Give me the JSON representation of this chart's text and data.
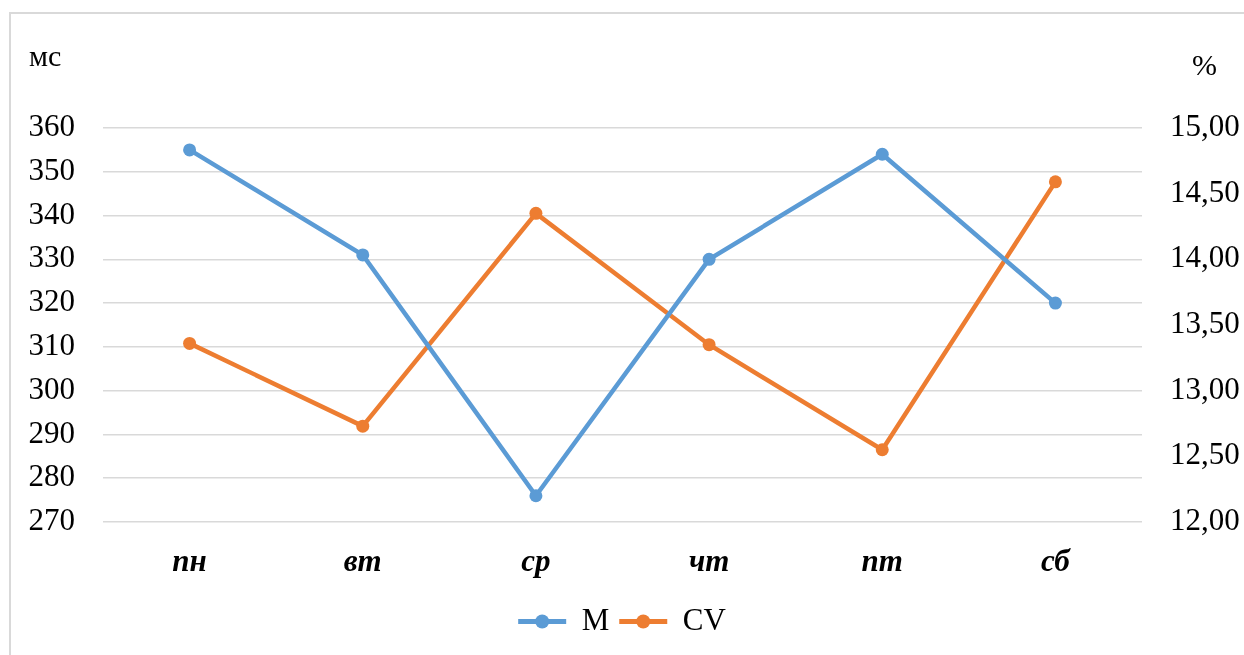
{
  "chart_data": {
    "type": "line",
    "ylabel": "мс",
    "y2label": "%",
    "categories": [
      "пн",
      "вт",
      "ср",
      "чт",
      "пт",
      "сб"
    ],
    "series": [
      {
        "name": "M",
        "color": "#5b9bd5",
        "values": [
          355,
          331,
          276,
          330,
          354,
          320
        ]
      },
      {
        "name": "CV",
        "color": "#ed7d31",
        "axis": "y2",
        "values": [
          13.36,
          12.73,
          14.35,
          13.35,
          12.55,
          14.59
        ]
      }
    ],
    "ylim": [
      270,
      360
    ],
    "yticks": [
      270,
      280,
      290,
      300,
      310,
      320,
      330,
      340,
      350,
      360
    ],
    "y2lim": [
      12,
      15
    ],
    "y2ticks": [
      {
        "value": 12,
        "label": "12,00"
      },
      {
        "value": 12.5,
        "label": "12,50"
      },
      {
        "value": 13,
        "label": "13,00"
      },
      {
        "value": 13.5,
        "label": "13,50"
      },
      {
        "value": 14,
        "label": "14,00"
      },
      {
        "value": 14.5,
        "label": "14,50"
      },
      {
        "value": 15,
        "label": "15,00"
      }
    ],
    "grid": "y",
    "legend": "bottom",
    "marker": "circle",
    "line_style": "solid"
  }
}
